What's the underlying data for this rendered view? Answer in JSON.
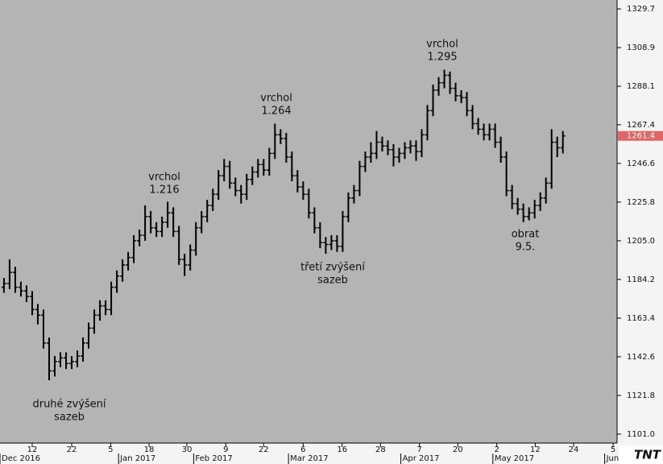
{
  "chart_data": {
    "type": "ohlc",
    "color": "#000000",
    "background": "#b4b4b4",
    "xlim": [
      -0.7,
      108.6
    ],
    "ylim": [
      1096.2,
      1334.5
    ],
    "yticks": [
      1329.7,
      1308.9,
      1288.1,
      1267.4,
      1246.6,
      1225.8,
      {
        "value": 1205,
        "label": "1205.0"
      },
      1184.2,
      1163.4,
      1142.6,
      1121.8,
      {
        "value": 1101,
        "label": "1101.0"
      }
    ],
    "xticks": [
      {
        "value": 5,
        "label": "12"
      },
      {
        "value": 12,
        "label": "22"
      },
      {
        "value": 18.9,
        "label": "5"
      },
      {
        "value": 25.7,
        "label": "18"
      },
      {
        "value": 32.4,
        "label": "30"
      },
      {
        "value": 39.3,
        "label": "9"
      },
      {
        "value": 46,
        "label": "22"
      },
      {
        "value": 53,
        "label": "6"
      },
      {
        "value": 59.9,
        "label": "16"
      },
      {
        "value": 66.7,
        "label": "28"
      },
      {
        "value": 73.6,
        "label": "7"
      },
      {
        "value": 80.4,
        "label": "20"
      },
      {
        "value": 87.3,
        "label": "2"
      },
      {
        "value": 94.1,
        "label": "12"
      },
      {
        "value": 100.9,
        "label": "24"
      },
      {
        "value": 107.9,
        "label": "5"
      }
    ],
    "month_ticks": [
      {
        "value": -0.7,
        "label": "Dec 2016"
      },
      {
        "value": 20.3,
        "label": "Jan 2017"
      },
      {
        "value": 33.6,
        "label": "Feb 2017"
      },
      {
        "value": 50.4,
        "label": "Mar 2017"
      },
      {
        "value": 70.3,
        "label": "Apr 2017"
      },
      {
        "value": 86.6,
        "label": "May 2017"
      },
      {
        "value": 106.4,
        "label": "Jun"
      }
    ],
    "open": [
      1180,
      1182,
      1188,
      1180,
      1178,
      1175,
      1168,
      1165,
      1150,
      1135,
      1140,
      1142,
      1139,
      1140,
      1143,
      1150,
      1158,
      1165,
      1170,
      1168,
      1180,
      1186,
      1192,
      1196,
      1205,
      1208,
      1218,
      1212,
      1210,
      1215,
      1220,
      1210,
      1195,
      1192,
      1200,
      1212,
      1218,
      1224,
      1230,
      1240,
      1245,
      1236,
      1232,
      1230,
      1238,
      1242,
      1246,
      1243,
      1252,
      1262,
      1260,
      1250,
      1240,
      1234,
      1230,
      1220,
      1212,
      1204,
      1203,
      1205,
      1202,
      1218,
      1228,
      1232,
      1245,
      1250,
      1252,
      1258,
      1256,
      1254,
      1250,
      1252,
      1255,
      1256,
      1253,
      1262,
      1275,
      1286,
      1290,
      1294,
      1287,
      1283,
      1282,
      1275,
      1268,
      1265,
      1262,
      1265,
      1258,
      1250,
      1232,
      1225,
      1222,
      1218,
      1220,
      1224,
      1228,
      1236,
      1258,
      1255
    ],
    "high": [
      1185,
      1195,
      1191,
      1183,
      1181,
      1178,
      1171,
      1168,
      1153,
      1143,
      1145,
      1145,
      1143,
      1146,
      1153,
      1161,
      1168,
      1173,
      1173,
      1183,
      1189,
      1195,
      1199,
      1208,
      1211,
      1224,
      1221,
      1215,
      1218,
      1226,
      1223,
      1213,
      1198,
      1203,
      1215,
      1221,
      1227,
      1233,
      1243,
      1249,
      1248,
      1239,
      1235,
      1241,
      1245,
      1249,
      1249,
      1255,
      1268,
      1265,
      1263,
      1253,
      1243,
      1237,
      1233,
      1223,
      1215,
      1207,
      1208,
      1208,
      1221,
      1231,
      1235,
      1248,
      1253,
      1258,
      1264,
      1261,
      1259,
      1257,
      1255,
      1258,
      1259,
      1259,
      1265,
      1278,
      1289,
      1293,
      1297,
      1296,
      1290,
      1286,
      1285,
      1278,
      1271,
      1268,
      1268,
      1268,
      1261,
      1253,
      1235,
      1228,
      1225,
      1223,
      1227,
      1231,
      1239,
      1265,
      1261,
      1264
    ],
    "low": [
      1177,
      1179,
      1177,
      1175,
      1172,
      1165,
      1160,
      1147,
      1130,
      1132,
      1137,
      1136,
      1136,
      1137,
      1140,
      1147,
      1155,
      1162,
      1165,
      1165,
      1177,
      1183,
      1189,
      1193,
      1202,
      1205,
      1209,
      1207,
      1207,
      1212,
      1207,
      1192,
      1186,
      1189,
      1197,
      1209,
      1215,
      1221,
      1227,
      1237,
      1233,
      1229,
      1225,
      1227,
      1235,
      1239,
      1240,
      1240,
      1249,
      1257,
      1247,
      1237,
      1231,
      1227,
      1217,
      1209,
      1201,
      1198,
      1200,
      1199,
      1199,
      1215,
      1225,
      1229,
      1242,
      1247,
      1249,
      1253,
      1251,
      1245,
      1247,
      1249,
      1252,
      1248,
      1250,
      1259,
      1272,
      1283,
      1287,
      1284,
      1280,
      1279,
      1272,
      1265,
      1262,
      1259,
      1259,
      1255,
      1247,
      1229,
      1222,
      1219,
      1215,
      1216,
      1217,
      1221,
      1225,
      1233,
      1250,
      1252
    ],
    "close": [
      1182,
      1188,
      1180,
      1178,
      1175,
      1168,
      1165,
      1150,
      1135,
      1140,
      1142,
      1139,
      1140,
      1143,
      1150,
      1158,
      1165,
      1170,
      1168,
      1180,
      1186,
      1192,
      1196,
      1205,
      1208,
      1218,
      1212,
      1210,
      1215,
      1220,
      1210,
      1195,
      1192,
      1200,
      1212,
      1218,
      1224,
      1230,
      1240,
      1245,
      1236,
      1232,
      1230,
      1238,
      1242,
      1246,
      1243,
      1252,
      1262,
      1260,
      1250,
      1240,
      1234,
      1230,
      1220,
      1212,
      1204,
      1203,
      1205,
      1202,
      1218,
      1228,
      1232,
      1245,
      1250,
      1252,
      1258,
      1256,
      1254,
      1250,
      1252,
      1255,
      1256,
      1253,
      1262,
      1275,
      1286,
      1290,
      1294,
      1287,
      1283,
      1282,
      1275,
      1268,
      1265,
      1262,
      1265,
      1258,
      1250,
      1232,
      1225,
      1222,
      1218,
      1220,
      1224,
      1228,
      1236,
      1258,
      1255,
      1261.4
    ],
    "last_price": 1261.4,
    "last_price_color": "#e06666",
    "annotations": [
      {
        "lines": [
          "druhé zvýšení",
          "sazeb"
        ]
      },
      {
        "lines": [
          "vrchol",
          "1.216"
        ]
      },
      {
        "lines": [
          "vrchol",
          "1.264"
        ]
      },
      {
        "lines": [
          "třetí zvýšení",
          "sazeb"
        ]
      },
      {
        "lines": [
          "vrchol",
          "1.295"
        ]
      },
      {
        "lines": [
          "obrat",
          "9.5."
        ]
      }
    ],
    "logo": "TNT"
  }
}
